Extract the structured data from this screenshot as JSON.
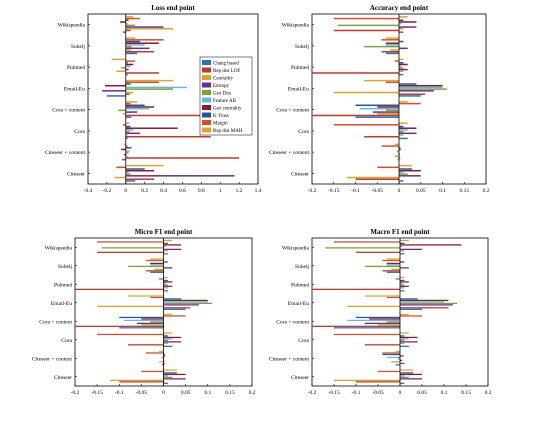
{
  "colors": [
    "#2a74b6",
    "#c0392b",
    "#d6a52a",
    "#6b2c8e",
    "#7aa43a",
    "#63b7e6",
    "#8b1a2b",
    "#1f57a6",
    "#d4502a",
    "#e0a430"
  ],
  "chart_data": [
    {
      "type": "bar",
      "orientation": "horizontal",
      "title": "Loss end point",
      "categories": [
        "Wikispeedia",
        "Subelj",
        "Pubmed",
        "Email-Eu",
        "Cora + content",
        "Cora",
        "Citeseer + content",
        "Citeseer"
      ],
      "xlim": [
        -0.4,
        1.4
      ],
      "xticks": [
        "-0.4",
        "-0.2",
        "0",
        "0.2",
        "0.4",
        "0.6",
        "0.8",
        "1",
        "1.2",
        "1.4"
      ],
      "xtick_values": [
        -0.4,
        -0.2,
        0,
        0.2,
        0.4,
        0.6,
        0.8,
        1.0,
        1.2,
        1.4
      ],
      "legend_position": "top-right",
      "series": [
        {
          "name": "Chang based",
          "values": [
            -0.03,
            0.12,
            0.02,
            -0.2,
            0.06,
            0.02,
            -0.04,
            0.1
          ]
        },
        {
          "name": "Rep dist LOF",
          "values": [
            0.05,
            0.3,
            0.35,
            0.04,
            0.8,
            0.9,
            1.2,
            0.3
          ]
        },
        {
          "name": "Centrality",
          "values": [
            0.5,
            0.05,
            -0.1,
            0.08,
            -0.03,
            0.02,
            0.02,
            -0.12
          ]
        },
        {
          "name": "Entropy",
          "values": [
            0.4,
            0.25,
            0.03,
            -0.25,
            0.12,
            0.15,
            -0.02,
            1.15
          ]
        },
        {
          "name": "Geo Dist",
          "values": [
            0.1,
            0.06,
            -0.05,
            0.5,
            -0.08,
            0.04,
            0.03,
            0.05
          ]
        },
        {
          "name": "Feature AB",
          "values": [
            0.02,
            0.2,
            0.05,
            0.65,
            0.25,
            0.08,
            0.04,
            0.03
          ]
        },
        {
          "name": "Geo centrality",
          "values": [
            -0.06,
            0.35,
            0.08,
            -0.22,
            0.3,
            0.55,
            -0.05,
            0.3
          ]
        },
        {
          "name": "K Truss",
          "values": [
            0.03,
            0.15,
            0.02,
            0.05,
            0.2,
            0.05,
            0.06,
            0.2
          ]
        },
        {
          "name": "Margin",
          "values": [
            0.15,
            0.4,
            0.1,
            0.35,
            0.05,
            -0.03,
            0.02,
            -0.1
          ]
        },
        {
          "name": "Rep dist MAH",
          "values": [
            0.08,
            0.1,
            -0.15,
            0.5,
            0.12,
            0.04,
            -0.02,
            0.4
          ]
        }
      ]
    },
    {
      "type": "bar",
      "orientation": "horizontal",
      "title": "Accuracy end point",
      "categories": [
        "Wikispeedia",
        "Subelj",
        "Pubmed",
        "Email-Eu",
        "Cora + content",
        "Cora",
        "Citeseer + content",
        "Citeseer"
      ],
      "xlim": [
        -0.2,
        0.2
      ],
      "xticks": [
        "-0.2",
        "-0.15",
        "-0.1",
        "-0.05",
        "0",
        "0.05",
        "0.1",
        "0.15",
        "0.2"
      ],
      "xtick_values": [
        -0.2,
        -0.15,
        -0.1,
        -0.05,
        0,
        0.05,
        0.1,
        0.15,
        0.2
      ],
      "series": [
        {
          "name": "Chang based",
          "values": [
            0.01,
            -0.03,
            0.01,
            0.05,
            -0.1,
            0.02,
            -0.003,
            0.01
          ]
        },
        {
          "name": "Rep dist LOF",
          "values": [
            -0.15,
            -0.04,
            -0.2,
            0.06,
            -0.2,
            -0.08,
            0.003,
            -0.1
          ]
        },
        {
          "name": "Centrality",
          "values": [
            0.01,
            -0.02,
            0.01,
            -0.15,
            -0.05,
            0.01,
            -0.01,
            -0.12
          ]
        },
        {
          "name": "Entropy",
          "values": [
            0.04,
            0.02,
            0.02,
            0.08,
            -0.06,
            0.04,
            0.002,
            0.05
          ]
        },
        {
          "name": "Geo Dist",
          "values": [
            -0.14,
            -0.08,
            0.01,
            0.11,
            -0.03,
            0.01,
            -0.002,
            0.02
          ]
        },
        {
          "name": "Feature AB",
          "values": [
            0.005,
            -0.03,
            0.005,
            0.1,
            -0.09,
            0.02,
            -0.005,
            0.01
          ]
        },
        {
          "name": "Geo centrality",
          "values": [
            0.04,
            -0.03,
            0.02,
            0.1,
            -0.05,
            0.04,
            0.004,
            0.05
          ]
        },
        {
          "name": "K Truss",
          "values": [
            0.01,
            0.01,
            0.01,
            0.04,
            -0.1,
            0.01,
            0.003,
            0.03
          ]
        },
        {
          "name": "Margin",
          "values": [
            -0.15,
            -0.04,
            -0.01,
            -0.03,
            0.05,
            -0.15,
            -0.04,
            -0.05
          ]
        },
        {
          "name": "Rep dist MAH",
          "values": [
            0.02,
            -0.03,
            0.01,
            -0.08,
            0.02,
            0.02,
            -0.01,
            0.03
          ]
        }
      ]
    },
    {
      "type": "bar",
      "orientation": "horizontal",
      "title": "Micro F1 end point",
      "categories": [
        "Wikispeedia",
        "Subelj",
        "Pubmed",
        "Email-Eu",
        "Cora + content",
        "Cora",
        "Citeseer + content",
        "Citeseer"
      ],
      "xlim": [
        -0.2,
        0.2
      ],
      "xticks": [
        "-0.2",
        "-0.15",
        "-0.1",
        "-0.05",
        "0",
        "0.05",
        "0.1",
        "0.15",
        "0.2"
      ],
      "xtick_values": [
        -0.2,
        -0.15,
        -0.1,
        -0.05,
        0,
        0.05,
        0.1,
        0.15,
        0.2
      ],
      "series": [
        {
          "name": "Chang based",
          "values": [
            0.01,
            -0.03,
            0.01,
            0.05,
            -0.1,
            0.02,
            -0.003,
            0.01
          ]
        },
        {
          "name": "Rep dist LOF",
          "values": [
            -0.15,
            -0.04,
            -0.2,
            0.06,
            -0.2,
            -0.08,
            0.003,
            -0.1
          ]
        },
        {
          "name": "Centrality",
          "values": [
            0.01,
            -0.02,
            0.01,
            -0.15,
            -0.05,
            0.01,
            -0.01,
            -0.12
          ]
        },
        {
          "name": "Entropy",
          "values": [
            0.04,
            0.02,
            0.02,
            0.08,
            -0.06,
            0.04,
            0.002,
            0.05
          ]
        },
        {
          "name": "Geo Dist",
          "values": [
            -0.14,
            -0.08,
            0.01,
            0.11,
            -0.03,
            0.01,
            -0.002,
            0.02
          ]
        },
        {
          "name": "Feature AB",
          "values": [
            0.005,
            -0.03,
            0.005,
            0.1,
            -0.09,
            0.02,
            -0.005,
            0.01
          ]
        },
        {
          "name": "Geo centrality",
          "values": [
            0.04,
            -0.03,
            0.02,
            0.1,
            -0.05,
            0.04,
            0.004,
            0.05
          ]
        },
        {
          "name": "K Truss",
          "values": [
            0.01,
            0.01,
            0.01,
            0.04,
            -0.1,
            0.01,
            0.003,
            0.03
          ]
        },
        {
          "name": "Margin",
          "values": [
            -0.15,
            -0.04,
            -0.01,
            -0.03,
            0.05,
            -0.15,
            -0.04,
            -0.05
          ]
        },
        {
          "name": "Rep dist MAH",
          "values": [
            0.02,
            -0.03,
            0.01,
            -0.08,
            0.02,
            0.02,
            -0.01,
            0.03
          ]
        }
      ]
    },
    {
      "type": "bar",
      "orientation": "horizontal",
      "title": "Macro F1 end point",
      "categories": [
        "Wikispeedia",
        "Subelj",
        "Pubmed",
        "Email-Eu",
        "Cora + content",
        "Cora",
        "Citeseer + content",
        "Citeseer"
      ],
      "xlim": [
        -0.2,
        0.2
      ],
      "xticks": [
        "-0.2",
        "-0.15",
        "-0.1",
        "-0.05",
        "0",
        "0.05",
        "0.1",
        "0.15",
        "0.2"
      ],
      "xtick_values": [
        -0.2,
        -0.15,
        -0.1,
        -0.05,
        0,
        0.05,
        0.1,
        0.15,
        0.2
      ],
      "series": [
        {
          "name": "Chang based",
          "values": [
            0.01,
            -0.03,
            0.01,
            0.05,
            -0.15,
            0.02,
            -0.01,
            0.01
          ]
        },
        {
          "name": "Rep dist LOF",
          "values": [
            -0.1,
            -0.04,
            -0.2,
            0.11,
            -0.2,
            -0.08,
            0.01,
            -0.1
          ]
        },
        {
          "name": "Centrality",
          "values": [
            0.01,
            -0.02,
            0.01,
            -0.12,
            -0.05,
            0.01,
            -0.02,
            -0.15
          ]
        },
        {
          "name": "Entropy",
          "values": [
            0.05,
            0.02,
            0.02,
            0.12,
            -0.08,
            0.04,
            0.005,
            0.05
          ]
        },
        {
          "name": "Geo Dist",
          "values": [
            -0.17,
            -0.08,
            0.01,
            0.13,
            -0.03,
            0.01,
            -0.005,
            0.02
          ]
        },
        {
          "name": "Feature AB",
          "values": [
            0.005,
            -0.03,
            0.005,
            0.1,
            -0.12,
            0.02,
            -0.03,
            0.01
          ]
        },
        {
          "name": "Geo centrality",
          "values": [
            0.14,
            -0.03,
            0.02,
            0.11,
            -0.07,
            0.04,
            0.008,
            0.05
          ]
        },
        {
          "name": "K Truss",
          "values": [
            0.01,
            0.01,
            0.01,
            0.04,
            -0.1,
            0.01,
            -0.04,
            0.03
          ]
        },
        {
          "name": "Margin",
          "values": [
            -0.15,
            -0.04,
            -0.01,
            -0.03,
            0.05,
            -0.15,
            -0.04,
            -0.05
          ]
        },
        {
          "name": "Rep dist MAH",
          "values": [
            0.02,
            -0.03,
            0.01,
            -0.08,
            0.02,
            0.02,
            -0.01,
            0.03
          ]
        }
      ]
    }
  ]
}
